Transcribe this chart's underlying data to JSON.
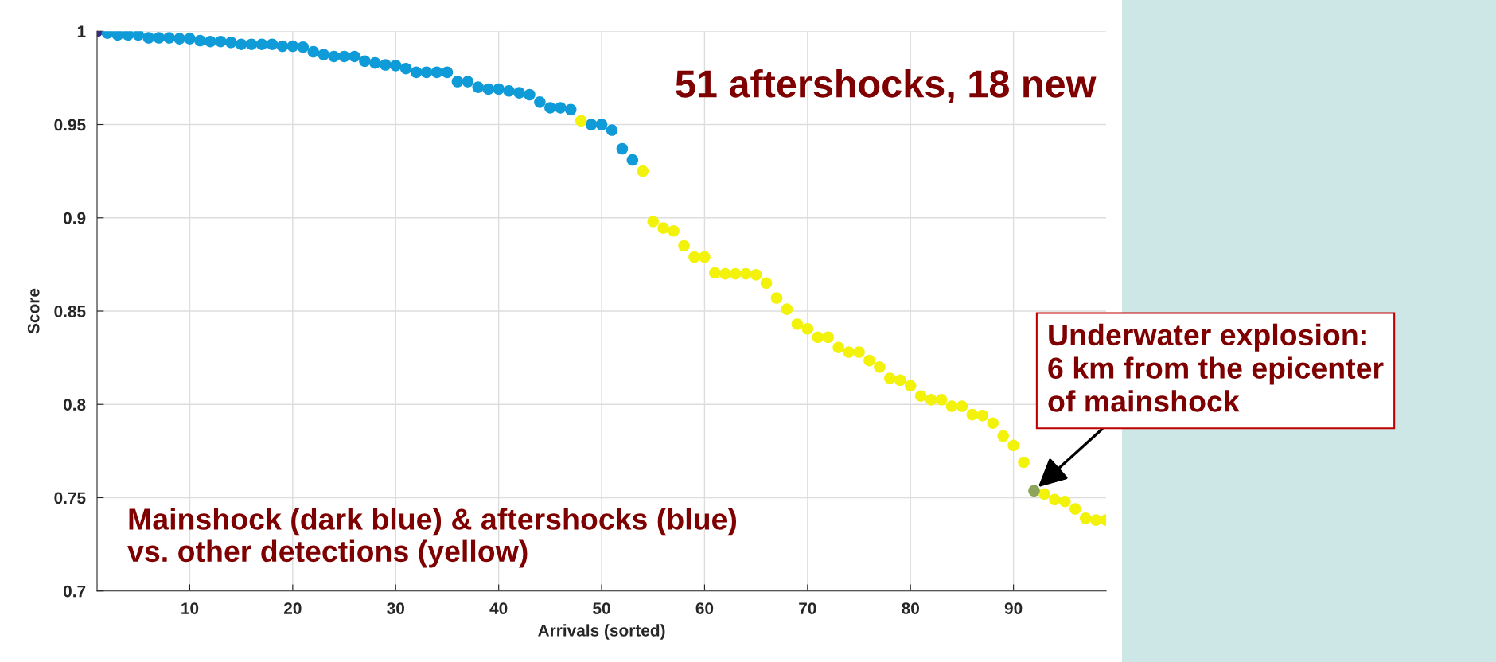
{
  "chart_data": {
    "type": "scatter",
    "xlabel": "Arrivals (sorted)",
    "ylabel": "Score",
    "xlim": [
      1,
      99
    ],
    "ylim": [
      0.7,
      1.0
    ],
    "xticks": [
      10,
      20,
      30,
      40,
      50,
      60,
      70,
      80,
      90
    ],
    "yticks": [
      0.7,
      0.75,
      0.8,
      0.85,
      0.9,
      0.95,
      {
        "value": 1.0,
        "label": "1"
      }
    ],
    "grid": true,
    "marker": "circle",
    "legend": false,
    "series": [
      {
        "color": "#352a87",
        "x": [
          1
        ],
        "values": [
          1.0
        ]
      },
      {
        "color": "#0f9bd7",
        "x": [
          2,
          3,
          4,
          5,
          6,
          7,
          8,
          9,
          10,
          11,
          12,
          13,
          14,
          15,
          16,
          17,
          18,
          19,
          20,
          21,
          22,
          23,
          24,
          25,
          26,
          27,
          28,
          29,
          30,
          31,
          32,
          33,
          34,
          35,
          36,
          37,
          38,
          39,
          40,
          41,
          42,
          43,
          44,
          45,
          46,
          47,
          49,
          50,
          51,
          52,
          53
        ],
        "values": [
          0.999,
          0.998,
          0.998,
          0.998,
          0.9965,
          0.9965,
          0.9965,
          0.996,
          0.996,
          0.995,
          0.9945,
          0.9945,
          0.994,
          0.993,
          0.993,
          0.993,
          0.993,
          0.992,
          0.992,
          0.9915,
          0.989,
          0.9875,
          0.9865,
          0.9865,
          0.9865,
          0.984,
          0.983,
          0.982,
          0.9816,
          0.98,
          0.978,
          0.978,
          0.978,
          0.978,
          0.973,
          0.973,
          0.97,
          0.969,
          0.969,
          0.968,
          0.967,
          0.966,
          0.962,
          0.959,
          0.959,
          0.958,
          0.95,
          0.95,
          0.947,
          0.937,
          0.931
        ]
      },
      {
        "color": "#f2f20a",
        "x": [
          48,
          54,
          55,
          56,
          57,
          58,
          59,
          60,
          61,
          62,
          63,
          64,
          65,
          66,
          67,
          68,
          69,
          70,
          71,
          72,
          73,
          74,
          75,
          76,
          77,
          78,
          79,
          80,
          81,
          82,
          83,
          84,
          85,
          86,
          87,
          88,
          89,
          90,
          91,
          93,
          94,
          95,
          96,
          97,
          98,
          99
        ],
        "values": [
          0.952,
          0.925,
          0.898,
          0.8945,
          0.893,
          0.885,
          0.879,
          0.879,
          0.8705,
          0.87,
          0.87,
          0.87,
          0.8695,
          0.865,
          0.857,
          0.851,
          0.843,
          0.8405,
          0.836,
          0.836,
          0.8305,
          0.828,
          0.828,
          0.8235,
          0.82,
          0.814,
          0.813,
          0.81,
          0.8045,
          0.8025,
          0.8025,
          0.799,
          0.799,
          0.7945,
          0.794,
          0.79,
          0.783,
          0.778,
          0.769,
          0.752,
          0.749,
          0.748,
          0.744,
          0.739,
          0.738,
          0.738
        ]
      },
      {
        "color": "#8da55a",
        "x": [
          92
        ],
        "values": [
          0.7537
        ]
      }
    ],
    "annotations": [
      "51 aftershocks, 18 new",
      "Mainshock (dark blue) & aftershocks (blue)\nvs. other detections (yellow)",
      {
        "text": "Underwater explosion:\n6 km from the epicenter\nof mainshock",
        "x": 92,
        "y": 0.7537
      }
    ]
  }
}
